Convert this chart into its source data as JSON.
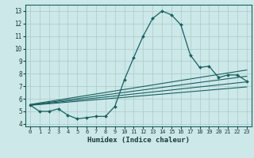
{
  "title": "",
  "xlabel": "Humidex (Indice chaleur)",
  "bg_color": "#cce8e8",
  "grid_color": "#aacaca",
  "line_color": "#1a6060",
  "xlim": [
    -0.5,
    23.5
  ],
  "ylim": [
    3.8,
    13.5
  ],
  "xticks": [
    0,
    1,
    2,
    3,
    4,
    5,
    6,
    7,
    8,
    9,
    10,
    11,
    12,
    13,
    14,
    15,
    16,
    17,
    18,
    19,
    20,
    21,
    22,
    23
  ],
  "yticks": [
    4,
    5,
    6,
    7,
    8,
    9,
    10,
    11,
    12,
    13
  ],
  "main_x": [
    0,
    1,
    2,
    3,
    4,
    5,
    6,
    7,
    8,
    9,
    10,
    11,
    12,
    13,
    14,
    15,
    16,
    17,
    18,
    19,
    20,
    21,
    22,
    23
  ],
  "main_y": [
    5.5,
    5.0,
    5.0,
    5.2,
    4.7,
    4.4,
    4.5,
    4.6,
    4.6,
    5.4,
    7.5,
    9.3,
    11.0,
    12.4,
    13.0,
    12.7,
    11.9,
    9.5,
    8.5,
    8.6,
    7.7,
    7.9,
    7.9,
    7.4
  ],
  "trend_lines": [
    {
      "x0": 0,
      "y0": 5.55,
      "x1": 23,
      "y1": 8.3
    },
    {
      "x0": 0,
      "y0": 5.52,
      "x1": 23,
      "y1": 7.8
    },
    {
      "x0": 0,
      "y0": 5.5,
      "x1": 23,
      "y1": 7.35
    },
    {
      "x0": 0,
      "y0": 5.48,
      "x1": 23,
      "y1": 6.95
    }
  ]
}
